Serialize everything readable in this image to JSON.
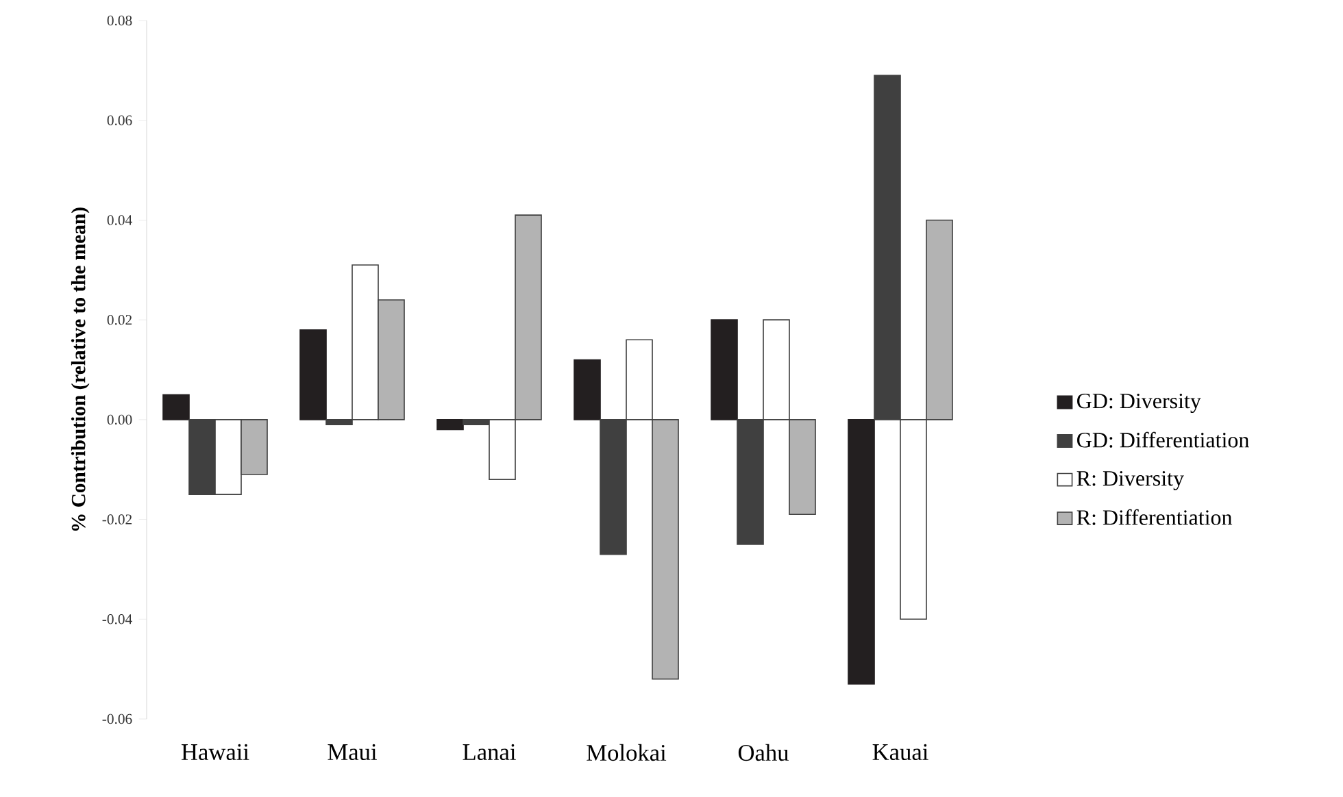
{
  "chart_data": {
    "type": "bar",
    "ylabel": "% Contribution (relative to the mean)",
    "categories": [
      "Hawaii",
      "Maui",
      "Lanai",
      "Molokai",
      "Oahu",
      "Kauai"
    ],
    "series": [
      {
        "name": "GD: Diversity",
        "color": "#231f20",
        "values": [
          0.005,
          0.018,
          -0.002,
          0.012,
          0.02,
          -0.053
        ]
      },
      {
        "name": "GD: Differentiation",
        "color": "#404040",
        "values": [
          -0.015,
          -0.001,
          -0.001,
          -0.027,
          -0.025,
          0.069
        ]
      },
      {
        "name": "R: Diversity",
        "color": "#ffffff",
        "values": [
          -0.015,
          0.031,
          -0.012,
          0.016,
          0.02,
          -0.04
        ]
      },
      {
        "name": "R: Differentiation",
        "color": "#b3b3b3",
        "values": [
          -0.011,
          0.024,
          0.041,
          -0.052,
          -0.019,
          0.04
        ]
      }
    ],
    "ylim": [
      -0.06,
      0.08
    ],
    "yticks": [
      {
        "value": -0.06,
        "label": "-0.06"
      },
      {
        "value": -0.04,
        "label": "-0.04"
      },
      {
        "value": -0.02,
        "label": "-0.02"
      },
      {
        "value": 0,
        "label": "0.00"
      },
      {
        "value": 0.02,
        "label": "0.02"
      },
      {
        "value": 0.04,
        "label": "0.04"
      },
      {
        "value": 0.06,
        "label": "0.06"
      },
      {
        "value": 0.08,
        "label": "0.08"
      }
    ],
    "legend": "right"
  }
}
